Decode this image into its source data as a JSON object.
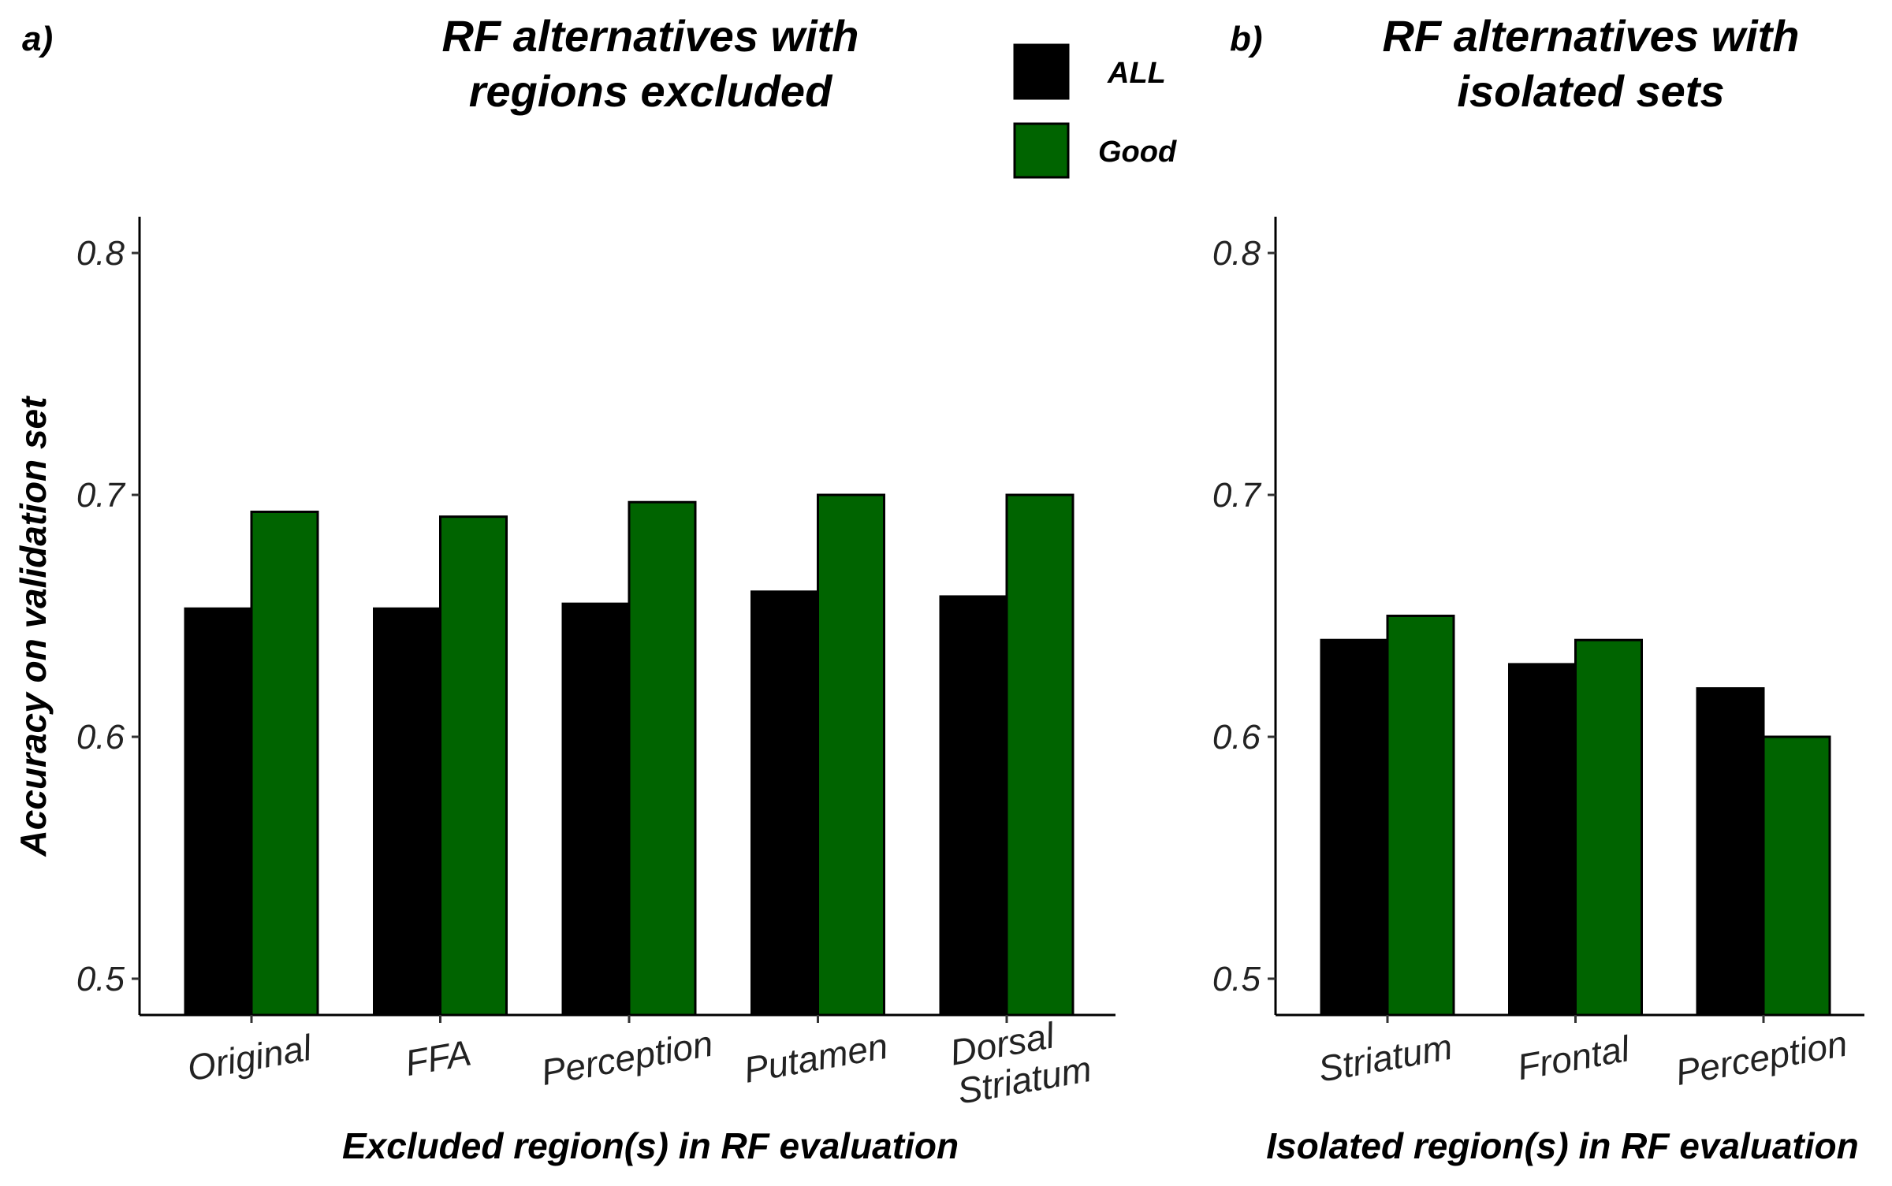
{
  "chart_data": [
    {
      "type": "bar",
      "panel_tag": "a)",
      "title_lines": [
        "RF alternatives with",
        "regions excluded"
      ],
      "xlabel": "Excluded region(s) in RF evaluation",
      "ylabel": "Accuracy on validation set",
      "categories": [
        "Original",
        "FFA",
        "Perception",
        "Putamen",
        "Dorsal Striatum"
      ],
      "series": [
        {
          "name": "ALL",
          "color": "#000000",
          "values": [
            0.653,
            0.653,
            0.655,
            0.66,
            0.658
          ]
        },
        {
          "name": "Good",
          "color": "#006400",
          "values": [
            0.693,
            0.691,
            0.697,
            0.7,
            0.7
          ]
        }
      ],
      "yticks": [
        0.5,
        0.6,
        0.7,
        0.8
      ],
      "ylim": [
        0.485,
        0.815
      ],
      "grid": false
    },
    {
      "type": "bar",
      "panel_tag": "b)",
      "title_lines": [
        "RF alternatives with",
        "isolated sets"
      ],
      "xlabel": "Isolated region(s) in RF evaluation",
      "ylabel": "",
      "categories": [
        "Striatum",
        "Frontal",
        "Perception"
      ],
      "series": [
        {
          "name": "ALL",
          "color": "#000000",
          "values": [
            0.64,
            0.63,
            0.62
          ]
        },
        {
          "name": "Good",
          "color": "#006400",
          "values": [
            0.65,
            0.64,
            0.6
          ]
        }
      ],
      "yticks": [
        0.5,
        0.6,
        0.7,
        0.8
      ],
      "ylim": [
        0.485,
        0.815
      ],
      "grid": false
    }
  ],
  "legend": {
    "position": "top-center",
    "entries": [
      {
        "label": "ALL",
        "color": "#000000"
      },
      {
        "label": "Good",
        "color": "#006400"
      }
    ]
  }
}
